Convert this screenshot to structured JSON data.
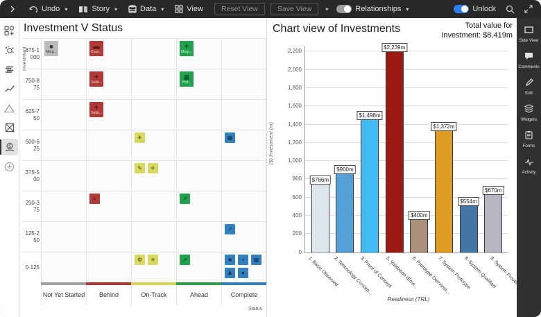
{
  "toolbar": {
    "undo": "Undo",
    "story": "Story",
    "data": "Data",
    "view": "View",
    "reset_view": "Reset View",
    "save_view": "Save View",
    "relationships": "Relationships",
    "unlock": "Unlock",
    "icons": [
      "chevron-right-icon",
      "undo-icon",
      "story-book-icon",
      "database-icon",
      "grid-view-icon",
      "toggle-icon",
      "search-icon",
      "expand-icon"
    ]
  },
  "left_rail": {
    "icons": [
      "add-items-icon",
      "bubble-view-icon",
      "list-view-icon",
      "trend-view-icon",
      "triangle-view-icon",
      "box-x-view-icon",
      "funds-view-icon",
      "add-circle-icon"
    ],
    "active_index": 6
  },
  "matrix": {
    "title": "Investment V Status",
    "y_axis_label": "Investment",
    "x_axis_label": "Status",
    "rows": [
      "875-1000",
      "750-875",
      "625-750",
      "500-625",
      "375-500",
      "250-375",
      "125-250",
      "0-125"
    ],
    "columns": [
      {
        "label": "Not Yet Started",
        "color": "#a0a0a0"
      },
      {
        "label": "Behind",
        "color": "#b23631"
      },
      {
        "label": "On-Track",
        "color": "#d6d455"
      },
      {
        "label": "Ahead",
        "color": "#2ba04a"
      },
      {
        "label": "Complete",
        "color": "#2e80c4"
      }
    ],
    "tile_colors": {
      "gray": {
        "bg": "#bcbcbc",
        "fg": "#333333",
        "ic": "#3c3c3c"
      },
      "red": {
        "bg": "#b03a36",
        "fg": "#f5dcdc",
        "ic": "#4a0e0c"
      },
      "yellow": {
        "bg": "#d8d75f",
        "fg": "#55531a",
        "ic": "#45430f"
      },
      "green": {
        "bg": "#21a14e",
        "fg": "#dff3e6",
        "ic": "#0a3d1d"
      },
      "blue": {
        "bg": "#3380bf",
        "fg": "#d9e8f5",
        "ic": "#122f4d"
      }
    },
    "tiles": [
      {
        "row": 0,
        "col": 0,
        "color": "gray",
        "label": "Morp...",
        "icon": "car"
      },
      {
        "row": 0,
        "col": 1,
        "color": "red",
        "label": "Coun...",
        "icon": "submarine"
      },
      {
        "row": 0,
        "col": 3,
        "color": "green",
        "label": "Morp...",
        "icon": "plane"
      },
      {
        "row": 1,
        "col": 1,
        "color": "red",
        "label": "Solid...",
        "icon": "jet"
      },
      {
        "row": 1,
        "col": 3,
        "color": "green",
        "label": "Prot...",
        "icon": "grid"
      },
      {
        "row": 2,
        "col": 1,
        "color": "red",
        "label": "Solid...",
        "icon": "jet"
      },
      {
        "row": 3,
        "col": 2,
        "color": "yellow",
        "label": "",
        "icon": "plane"
      },
      {
        "row": 3,
        "col": 4,
        "color": "blue",
        "label": "",
        "icon": "grid"
      },
      {
        "row": 4,
        "col": 2,
        "color": "yellow",
        "label": "",
        "icon": "pencil"
      },
      {
        "row": 4,
        "col": 2,
        "color": "yellow",
        "label": "",
        "icon": "jet"
      },
      {
        "row": 5,
        "col": 1,
        "color": "red",
        "label": "",
        "icon": "helicopter"
      },
      {
        "row": 5,
        "col": 3,
        "color": "green",
        "label": "",
        "icon": "trend"
      },
      {
        "row": 6,
        "col": 4,
        "color": "blue",
        "label": "",
        "icon": "trend"
      },
      {
        "row": 7,
        "col": 2,
        "color": "yellow",
        "label": "",
        "icon": "gear"
      },
      {
        "row": 7,
        "col": 2,
        "color": "yellow",
        "label": "",
        "icon": "drone"
      },
      {
        "row": 7,
        "col": 3,
        "color": "green",
        "label": "",
        "icon": "trend"
      },
      {
        "row": 7,
        "col": 4,
        "color": "blue",
        "label": "",
        "icon": "box"
      },
      {
        "row": 7,
        "col": 4,
        "color": "blue",
        "label": "",
        "icon": "plus"
      },
      {
        "row": 7,
        "col": 4,
        "color": "blue",
        "label": "",
        "icon": "grid"
      },
      {
        "row": 7,
        "col": 4,
        "color": "blue",
        "label": "",
        "icon": "person"
      },
      {
        "row": 7,
        "col": 4,
        "color": "blue",
        "label": "",
        "icon": "circle"
      }
    ]
  },
  "chart_panel": {
    "title": "Chart view of Investments",
    "total_line1": "Total value for",
    "total_line2": "Investment: $8,419m"
  },
  "chart_data": {
    "type": "bar",
    "title": "Chart view of Investments",
    "categories": [
      "1. Basic Observed",
      "2. Tehcnology Concep...",
      "3. Proof of Concept",
      "5. Validation (Envi...",
      "6. Prototype Demonst...",
      "7. System Prototype",
      "8. System Qualified",
      "9. System Proven"
    ],
    "values": [
      786,
      900,
      1498,
      2239,
      400,
      1372,
      554,
      670
    ],
    "value_labels": [
      "$786m",
      "$900m",
      "$1,498m",
      "$2,239m",
      "$400m",
      "$1,372m",
      "$554m",
      "$670m"
    ],
    "colors": [
      "#dde6ef",
      "#539fd6",
      "#41bbf2",
      "#9b1a13",
      "#a98f7c",
      "#de9c22",
      "#4576a6",
      "#b6b6c2"
    ],
    "xlabel": "Readiness (TRL)",
    "ylabel": "($) Investment (m)",
    "ylim": [
      0,
      2200
    ],
    "ytick_step": 200,
    "grid": true,
    "legend": false
  },
  "right_rail": {
    "items": [
      {
        "label": "Side View",
        "icon": "side-view-icon"
      },
      {
        "label": "Comments",
        "icon": "comments-icon"
      },
      {
        "label": "Edit",
        "icon": "edit-icon"
      },
      {
        "label": "Widgets",
        "icon": "widgets-icon"
      },
      {
        "label": "Forms",
        "icon": "forms-icon"
      },
      {
        "label": "Activity",
        "icon": "activity-icon"
      }
    ]
  }
}
